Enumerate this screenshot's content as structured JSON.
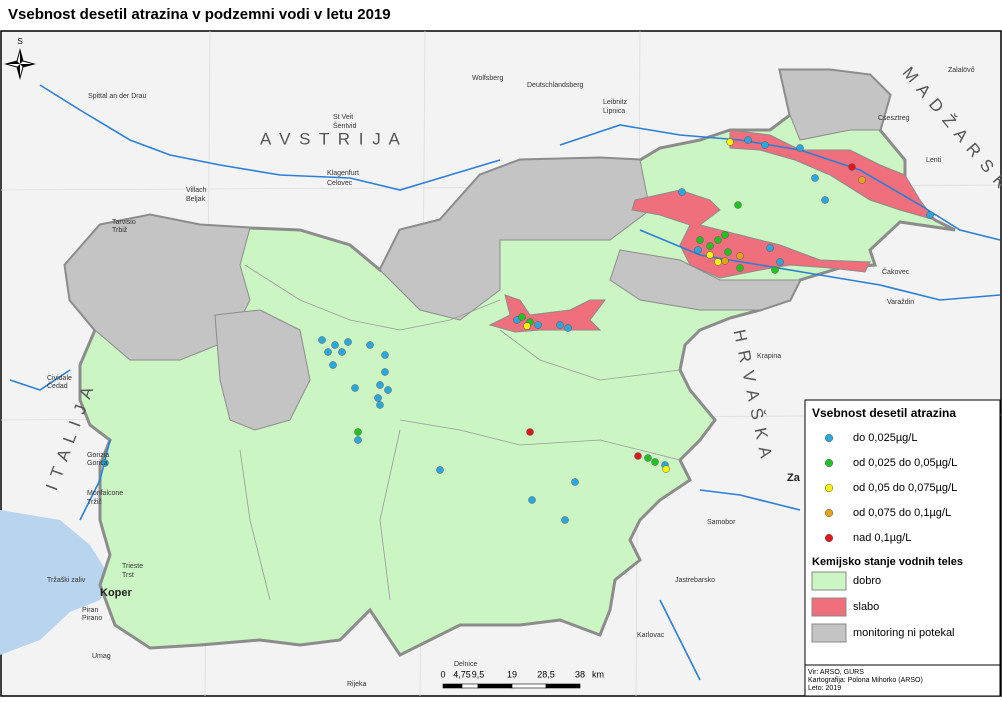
{
  "title": "Vsebnost desetil atrazina v podzemni vodi v letu 2019",
  "north_arrow": "S",
  "legend": {
    "points_title": "Vsebnost desetil atrazina",
    "points": [
      {
        "label": "do 0,025µg/L",
        "color": "#29a8e0"
      },
      {
        "label": "od 0,025 do 0,05µg/L",
        "color": "#22c122"
      },
      {
        "label": "od 0,05 do 0,075µg/L",
        "color": "#f6f600"
      },
      {
        "label": "od 0,075 do 0,1µg/L",
        "color": "#e8a21a"
      },
      {
        "label": "nad 0,1µg/L",
        "color": "#e3161b"
      }
    ],
    "areas_title": "Kemijsko stanje vodnih teles",
    "areas": [
      {
        "label": "dobro",
        "color": "#ccf5c4"
      },
      {
        "label": "slabo",
        "color": "#ef6f7c"
      },
      {
        "label": "monitoring ni potekal",
        "color": "#c4c4c4"
      }
    ]
  },
  "countries": [
    "A V S T R I J A",
    "M A D Ž A R S K A",
    "H R V A Š K A",
    "I T A L I J A"
  ],
  "places": [
    "Spittal an der Drau",
    "Wolfsberg",
    "Deutschlandsberg",
    "Leibnitz",
    "Lipnica",
    "Zalalövő",
    "St Veit",
    "Šentvid",
    "Csesztreg",
    "Klagenfurt",
    "Celovec",
    "Villach",
    "Beljak",
    "Lenti",
    "Tarvisio",
    "Trbiž",
    "Čakovec",
    "Varaždin",
    "Krapina",
    "Cividale",
    "Čedad",
    "Gorizia",
    "Gorica",
    "Za",
    "Samobor",
    "Monfalcone",
    "Tržič",
    "Jastrebarsko",
    "Tržaški zaliv",
    "Trieste",
    "Trst",
    "Koper",
    "Piran",
    "Pirano",
    "Karlovac",
    "Umag",
    "Delnice",
    "Rijeka"
  ],
  "scale": {
    "ticks": [
      "0",
      "4,75",
      "9,5",
      "19",
      "28,5",
      "38"
    ],
    "unit": "km"
  },
  "credits": [
    "Vir: ARSO, GURS",
    "Kartografija: Polona Mihorko (ARSO)",
    "Leto: 2019"
  ]
}
